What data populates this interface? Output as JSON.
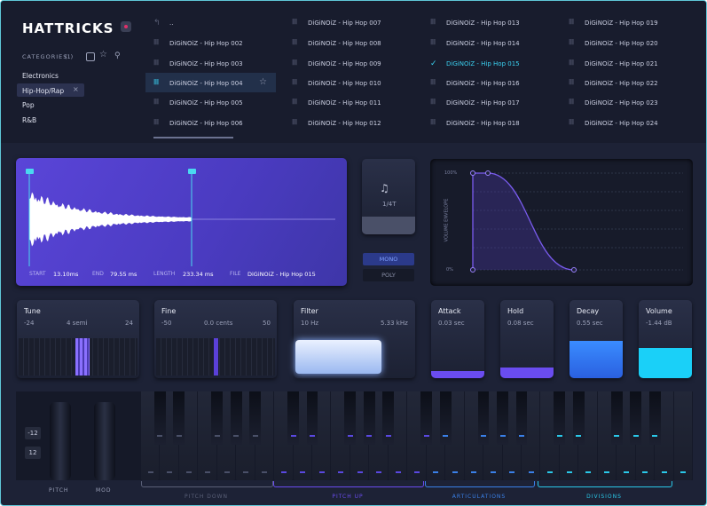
{
  "logo": "HATTRICKS",
  "categories": {
    "label": "CATEGORIES",
    "count": "(1)",
    "items": [
      "Electronics",
      "Hip-Hop/Rap",
      "Pop",
      "R&B"
    ],
    "clear": "×"
  },
  "browser": {
    "columns": [
      [
        "..",
        "DiGiNOiZ - Hip Hop 002",
        "DiGiNOiZ - Hip Hop 003",
        "DiGiNOiZ - Hip Hop 004",
        "DiGiNOiZ - Hip Hop 005",
        "DiGiNOiZ - Hip Hop 006"
      ],
      [
        "DiGiNOiZ - Hip Hop 007",
        "DiGiNOiZ - Hip Hop 008",
        "DiGiNOiZ - Hip Hop 009",
        "DiGiNOiZ - Hip Hop 010",
        "DiGiNOiZ - Hip Hop 011",
        "DiGiNOiZ - Hip Hop 012"
      ],
      [
        "DiGiNOiZ - Hip Hop 013",
        "DiGiNOiZ - Hip Hop 014",
        "DiGiNOiZ - Hip Hop 015",
        "DiGiNOiZ - Hip Hop 016",
        "DiGiNOiZ - Hip Hop 017",
        "DiGiNOiZ - Hip Hop 018"
      ],
      [
        "DiGiNOiZ - Hip Hop 019",
        "DiGiNOiZ - Hip Hop 020",
        "DiGiNOiZ - Hip Hop 021",
        "DiGiNOiZ - Hip Hop 022",
        "DiGiNOiZ - Hip Hop 023",
        "DiGiNOiZ - Hip Hop 024"
      ]
    ]
  },
  "sample": {
    "start_label": "START",
    "start": "13.10ms",
    "end_label": "END",
    "end": "79.55 ms",
    "length_label": "LENGTH",
    "length": "233.34 ms",
    "file_label": "FILE",
    "file": "DiGiNOiZ - Hip Hop 015"
  },
  "sync": "1/4T",
  "voice_modes": [
    "MONO",
    "POLY"
  ],
  "envelope": {
    "label": "VOLUME ENVELOPE",
    "max": "100%",
    "min": "0%"
  },
  "controls": [
    {
      "name": "Tune",
      "min": "-24",
      "value": "4 semi",
      "max": "24"
    },
    {
      "name": "Fine",
      "min": "-50",
      "value": "0.0 cents",
      "max": "50"
    },
    {
      "name": "Filter",
      "min": "10 Hz",
      "value": "5.33 kHz"
    },
    {
      "name": "Attack",
      "value": "0.03 sec"
    },
    {
      "name": "Hold",
      "value": "0.08 sec"
    },
    {
      "name": "Decay",
      "value": "0.55 sec"
    },
    {
      "name": "Volume",
      "value": "-1.44 dB"
    }
  ],
  "keyboard": {
    "octave_buttons": [
      "-12",
      "12"
    ],
    "wheels": [
      "PITCH",
      "MOD"
    ],
    "zones": [
      "PITCH DOWN",
      "PITCH UP",
      "ARTICULATIONS",
      "DIVISIONS"
    ]
  }
}
